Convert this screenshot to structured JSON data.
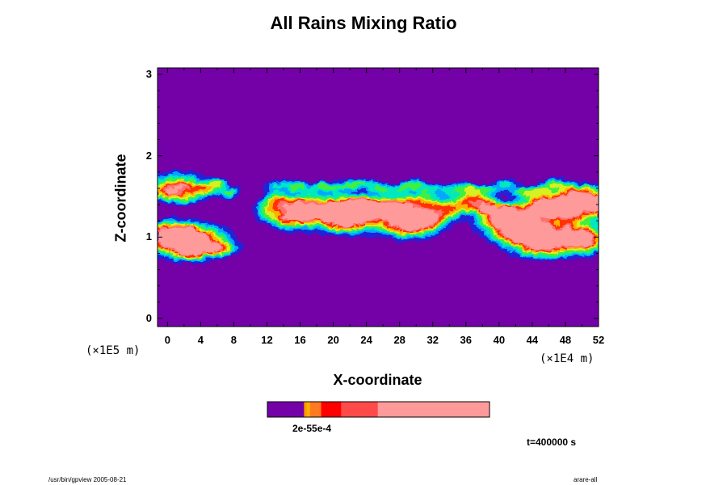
{
  "chart_data": {
    "type": "heatmap",
    "title": "All Rains Mixing Ratio",
    "xlabel": "X-coordinate",
    "ylabel": "Z-coordinate",
    "x_scale_label": "(×1E4 m)",
    "y_scale_label": "(×1E5 m)",
    "xlim": [
      -1.2,
      52
    ],
    "ylim": [
      -0.1,
      3.08
    ],
    "x_ticks": [
      "0",
      "4",
      "8",
      "12",
      "16",
      "20",
      "24",
      "28",
      "32",
      "36",
      "40",
      "44",
      "48",
      "52"
    ],
    "y_ticks": [
      "0",
      "1",
      "2",
      "3"
    ],
    "background_color": "#7400a8",
    "colormap": [
      "#7400a8",
      "#2020d8",
      "#00a8ff",
      "#00e8c0",
      "#40f040",
      "#d8f020",
      "#ffb000",
      "#ff3000",
      "#ff7070",
      "#ff9a9a"
    ],
    "colorbar": {
      "label": "2e-55e-4",
      "segments": [
        {
          "color": "#7400a8",
          "fraction": 0.165
        },
        {
          "color": "#ff9a00",
          "fraction": 0.012
        },
        {
          "color": "#ffb000",
          "fraction": 0.015
        },
        {
          "color": "#ff7a20",
          "fraction": 0.05
        },
        {
          "color": "#ff0000",
          "fraction": 0.09
        },
        {
          "color": "#ff4a4a",
          "fraction": 0.165
        },
        {
          "color": "#ff9a9a",
          "fraction": 0.503
        }
      ]
    },
    "rain_regions": [
      {
        "x": 3.5,
        "z": 0.95,
        "level": 7
      },
      {
        "x": 0.5,
        "z": 0.98,
        "level": 5
      },
      {
        "x": 1.5,
        "z": 1.62,
        "level": 3
      },
      {
        "x": 21,
        "z": 1.27,
        "level": 7
      },
      {
        "x": 25,
        "z": 1.3,
        "level": 5
      },
      {
        "x": 29,
        "z": 1.2,
        "level": 6
      },
      {
        "x": 16,
        "z": 1.3,
        "level": 4
      },
      {
        "x": 41.5,
        "z": 1.2,
        "level": 8
      },
      {
        "x": 44.5,
        "z": 0.98,
        "level": 8
      },
      {
        "x": 48,
        "z": 1.4,
        "level": 7
      },
      {
        "x": 49,
        "z": 1.0,
        "level": 6
      },
      {
        "x": 51,
        "z": 1.4,
        "level": 5
      }
    ]
  },
  "annotations": {
    "time": "t=400000 s",
    "footer_left": "/usr/bin/gpview 2005-08-21",
    "footer_right": "arare-all"
  }
}
